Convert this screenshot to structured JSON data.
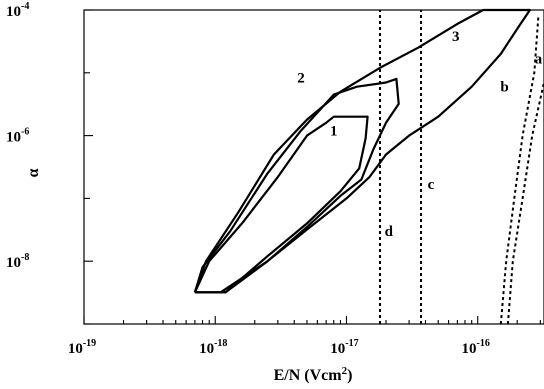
{
  "chart_data": {
    "type": "line",
    "xlabel": "E/N (Vcm2)",
    "ylabel": "α",
    "x_scale": "log",
    "y_scale": "log",
    "xlim": [
      1e-19,
      3.2e-16
    ],
    "ylim": [
      1e-09,
      0.0001
    ],
    "x_ticks": [
      {
        "value": 1e-19,
        "base": "10",
        "exp": "-19"
      },
      {
        "value": 1e-18,
        "base": "10",
        "exp": "-18"
      },
      {
        "value": 1e-17,
        "base": "10",
        "exp": "-17"
      },
      {
        "value": 1e-16,
        "base": "10",
        "exp": "-16"
      }
    ],
    "y_ticks": [
      {
        "value": 0.0001,
        "base": "10",
        "exp": "-4"
      },
      {
        "value": 1e-06,
        "base": "10",
        "exp": "-6"
      },
      {
        "value": 1e-08,
        "base": "10",
        "exp": "-8"
      }
    ],
    "grid": false,
    "series": [
      {
        "name": "1",
        "style": "solid",
        "points": [
          [
            7e-19,
            3.2e-09
          ],
          [
            1.2e-18,
            3.2e-09
          ],
          [
            2.5e-18,
            1.2e-08
          ],
          [
            5e-18,
            4e-08
          ],
          [
            9e-18,
            1.3e-07
          ],
          [
            1.25e-17,
            3e-07
          ],
          [
            1.4e-17,
            9e-07
          ],
          [
            1.45e-17,
            2e-06
          ],
          [
            8e-18,
            2e-06
          ],
          [
            7e-18,
            1.6e-06
          ],
          [
            5e-18,
            1e-06
          ],
          [
            3e-18,
            2.2e-07
          ],
          [
            1.6e-18,
            4e-08
          ],
          [
            9e-19,
            1e-08
          ],
          [
            7e-19,
            3.2e-09
          ]
        ],
        "label": {
          "text": "1",
          "x": 8e-18,
          "y": 1e-06
        }
      },
      {
        "name": "2",
        "style": "solid",
        "points": [
          [
            7e-19,
            3.2e-09
          ],
          [
            1.2e-18,
            3.2e-09
          ],
          [
            2.5e-18,
            1e-08
          ],
          [
            5e-18,
            3.5e-08
          ],
          [
            9e-18,
            1.1e-07
          ],
          [
            1.3e-17,
            2e-07
          ],
          [
            1.6e-17,
            6e-07
          ],
          [
            2e-17,
            1.6e-06
          ],
          [
            2.5e-17,
            3.2e-06
          ],
          [
            2.4e-17,
            8e-06
          ],
          [
            2e-17,
            7e-06
          ],
          [
            1.2e-17,
            6e-06
          ],
          [
            8e-18,
            4.5e-06
          ],
          [
            4.5e-18,
            1.2e-06
          ],
          [
            2.5e-18,
            2.5e-07
          ],
          [
            1.3e-18,
            3e-08
          ],
          [
            8e-19,
            8e-09
          ],
          [
            7e-19,
            3.2e-09
          ]
        ],
        "label": {
          "text": "2",
          "x": 4.5e-18,
          "y": 7e-06
        }
      },
      {
        "name": "3",
        "style": "solid",
        "points": [
          [
            7e-19,
            3.2e-09
          ],
          [
            1.1e-18,
            3.2e-09
          ],
          [
            2.5e-18,
            1e-08
          ],
          [
            5e-18,
            3.2e-08
          ],
          [
            1e-17,
            1e-07
          ],
          [
            1.5e-17,
            2.2e-07
          ],
          [
            2e-17,
            5e-07
          ],
          [
            3e-17,
            1e-06
          ],
          [
            5e-17,
            2e-06
          ],
          [
            9e-17,
            6e-06
          ],
          [
            1.5e-16,
            2e-05
          ],
          [
            2e-16,
            5e-05
          ],
          [
            2.5e-16,
            0.0001
          ],
          [
            1.1e-16,
            0.0001
          ],
          [
            7e-17,
            6e-05
          ],
          [
            3.5e-17,
            2.5e-05
          ],
          [
            1.8e-17,
            1.2e-05
          ],
          [
            9e-18,
            5e-06
          ],
          [
            5e-18,
            1.8e-06
          ],
          [
            2.8e-18,
            5e-07
          ],
          [
            1.5e-18,
            6e-08
          ],
          [
            8.5e-19,
            1e-08
          ],
          [
            7e-19,
            3.2e-09
          ]
        ],
        "label": {
          "text": "3",
          "x": 6.8e-17,
          "y": 3.2e-05
        }
      },
      {
        "name": "a",
        "style": "dashed",
        "points": [
          [
            1.7e-16,
            1e-09
          ],
          [
            1.85e-16,
            1e-08
          ],
          [
            2.2e-16,
            1e-07
          ],
          [
            2.6e-16,
            1e-06
          ],
          [
            3.2e-16,
            7e-06
          ]
        ],
        "label": {
          "text": "a",
          "x": 2.9e-16,
          "y": 1.4e-05
        }
      },
      {
        "name": "b",
        "style": "dashed",
        "points": [
          [
            1.5e-16,
            1e-09
          ],
          [
            1.65e-16,
            1e-08
          ],
          [
            1.9e-16,
            1e-07
          ],
          [
            2.2e-16,
            1e-06
          ],
          [
            2.7e-16,
            1e-05
          ],
          [
            2.9e-16,
            8e-05
          ]
        ],
        "label": {
          "text": "b",
          "x": 1.6e-16,
          "y": 5e-06
        }
      },
      {
        "name": "c",
        "style": "dashed",
        "points": [
          [
            3.7e-17,
            1e-09
          ],
          [
            3.7e-17,
            0.0001
          ]
        ],
        "label": {
          "text": "c",
          "x": 4.4e-17,
          "y": 1.4e-07
        }
      },
      {
        "name": "d",
        "style": "dashed",
        "points": [
          [
            1.8e-17,
            1e-09
          ],
          [
            1.8e-17,
            0.0001
          ]
        ],
        "label": {
          "text": "d",
          "x": 2.1e-17,
          "y": 2.5e-08
        }
      }
    ]
  }
}
